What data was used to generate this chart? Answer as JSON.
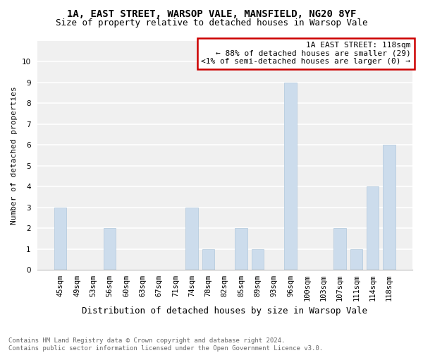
{
  "title": "1A, EAST STREET, WARSOP VALE, MANSFIELD, NG20 8YF",
  "subtitle": "Size of property relative to detached houses in Warsop Vale",
  "xlabel": "Distribution of detached houses by size in Warsop Vale",
  "ylabel": "Number of detached properties",
  "categories": [
    "45sqm",
    "49sqm",
    "53sqm",
    "56sqm",
    "60sqm",
    "63sqm",
    "67sqm",
    "71sqm",
    "74sqm",
    "78sqm",
    "82sqm",
    "85sqm",
    "89sqm",
    "93sqm",
    "96sqm",
    "100sqm",
    "103sqm",
    "107sqm",
    "111sqm",
    "114sqm",
    "118sqm"
  ],
  "values": [
    3,
    0,
    0,
    2,
    0,
    0,
    0,
    0,
    3,
    1,
    0,
    2,
    1,
    0,
    9,
    0,
    0,
    2,
    1,
    4,
    6
  ],
  "bar_color": "#ccdcec",
  "bar_edge_color": "#b0c8dc",
  "annotation_title": "1A EAST STREET: 118sqm",
  "annotation_line1": "← 88% of detached houses are smaller (29)",
  "annotation_line2": "<1% of semi-detached houses are larger (0) →",
  "annotation_box_color": "#cc0000",
  "plot_bg_color": "#f0f0f0",
  "grid_color": "#ffffff",
  "fig_bg_color": "#ffffff",
  "ylim": [
    0,
    11
  ],
  "yticks": [
    0,
    1,
    2,
    3,
    4,
    5,
    6,
    7,
    8,
    9,
    10
  ],
  "footer_line1": "Contains HM Land Registry data © Crown copyright and database right 2024.",
  "footer_line2": "Contains public sector information licensed under the Open Government Licence v3.0.",
  "title_fontsize": 10,
  "subtitle_fontsize": 9,
  "xlabel_fontsize": 9,
  "ylabel_fontsize": 8,
  "tick_fontsize": 7.5,
  "annotation_fontsize": 8,
  "footer_fontsize": 6.5
}
